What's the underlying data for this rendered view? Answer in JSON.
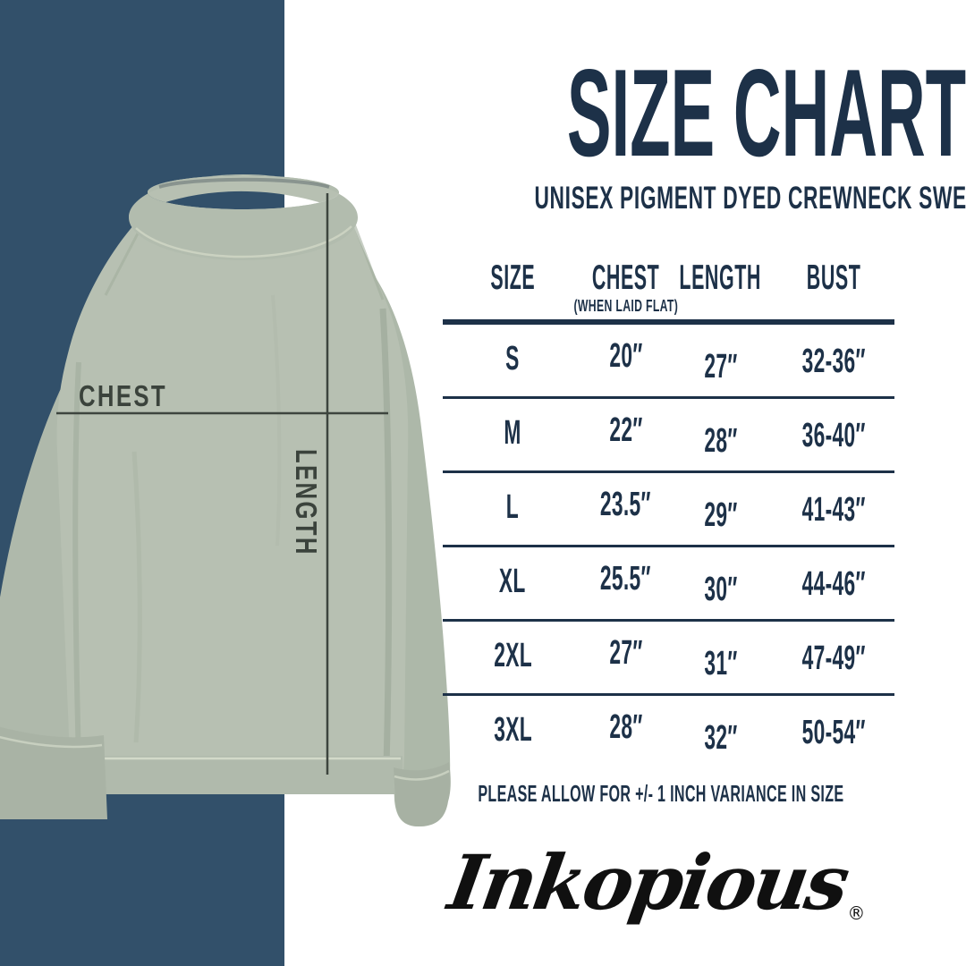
{
  "theme": {
    "band_navy": "#32506A",
    "ink_navy": "#1D3148",
    "label_charcoal": "#3B433C",
    "garment_sage": "#B7C0B2",
    "background": "#FFFFFF",
    "logo_black": "#101010"
  },
  "header": {
    "title": "SIZE CHART",
    "subtitle": "UNISEX PIGMENT DYED CREWNECK SWEATSHIRT"
  },
  "diagram": {
    "chest_label": "CHEST",
    "length_label": "LENGTH"
  },
  "size_table": {
    "columns": [
      "SIZE",
      "CHEST",
      "LENGTH",
      "BUST"
    ],
    "chest_subnote": "(WHEN LAID FLAT)",
    "rows": [
      {
        "size": "S",
        "chest": "20″",
        "length": "27″",
        "bust": "32-36″"
      },
      {
        "size": "M",
        "chest": "22″",
        "length": "28″",
        "bust": "36-40″"
      },
      {
        "size": "L",
        "chest": "23.5″",
        "length": "29″",
        "bust": "41-43″"
      },
      {
        "size": "XL",
        "chest": "25.5″",
        "length": "30″",
        "bust": "44-46″"
      },
      {
        "size": "2XL",
        "chest": "27″",
        "length": "31″",
        "bust": "47-49″"
      },
      {
        "size": "3XL",
        "chest": "28″",
        "length": "32″",
        "bust": "50-54″"
      }
    ]
  },
  "footer": {
    "variance_note": "PLEASE ALLOW FOR +/- 1 INCH VARIANCE IN SIZE",
    "brand": "Inkopious",
    "registered": "®"
  },
  "chart_data": {
    "type": "table",
    "title": "SIZE CHART",
    "subtitle": "UNISEX PIGMENT DYED CREWNECK SWEATSHIRT",
    "columns": [
      "SIZE",
      "CHEST (WHEN LAID FLAT)",
      "LENGTH",
      "BUST"
    ],
    "rows": [
      [
        "S",
        "20″",
        "27″",
        "32-36″"
      ],
      [
        "M",
        "22″",
        "28″",
        "36-40″"
      ],
      [
        "L",
        "23.5″",
        "29″",
        "41-43″"
      ],
      [
        "XL",
        "25.5″",
        "30″",
        "44-46″"
      ],
      [
        "2XL",
        "27″",
        "31″",
        "47-49″"
      ],
      [
        "3XL",
        "28″",
        "32″",
        "50-54″"
      ]
    ],
    "note": "PLEASE ALLOW FOR +/- 1 INCH VARIANCE IN SIZE",
    "layout": {
      "grid": false,
      "legend": "none"
    }
  }
}
